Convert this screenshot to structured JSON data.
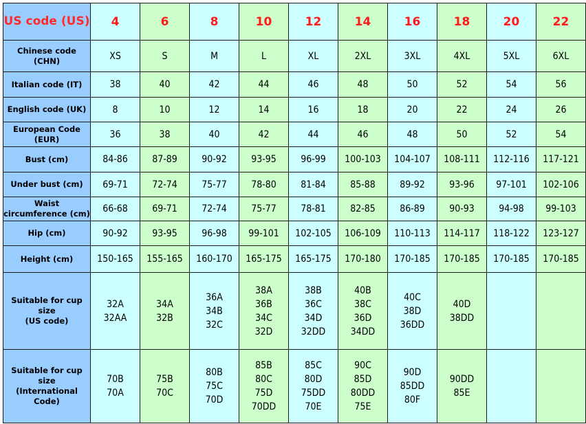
{
  "colors": {
    "label_bg": "#99ccff",
    "col_a": "#ccffff",
    "col_b": "#ccffcc",
    "header_text": "#ff1a1a"
  },
  "rows": [
    {
      "label": "US code (US)",
      "values": [
        "4",
        "6",
        "8",
        "10",
        "12",
        "14",
        "16",
        "18",
        "20",
        "22"
      ]
    },
    {
      "label": "Chinese code (CHN)",
      "values": [
        "XS",
        "S",
        "M",
        "L",
        "XL",
        "2XL",
        "3XL",
        "4XL",
        "5XL",
        "6XL"
      ]
    },
    {
      "label": "Italian code (IT)",
      "values": [
        "38",
        "40",
        "42",
        "44",
        "46",
        "48",
        "50",
        "52",
        "54",
        "56"
      ]
    },
    {
      "label": "English code (UK)",
      "values": [
        "8",
        "10",
        "12",
        "14",
        "16",
        "18",
        "20",
        "22",
        "24",
        "26"
      ]
    },
    {
      "label": "European Code (EUR)",
      "values": [
        "36",
        "38",
        "40",
        "42",
        "44",
        "46",
        "48",
        "50",
        "52",
        "54"
      ]
    },
    {
      "label": "Bust (cm)",
      "values": [
        "84-86",
        "87-89",
        "90-92",
        "93-95",
        "96-99",
        "100-103",
        "104-107",
        "108-111",
        "112-116",
        "117-121"
      ]
    },
    {
      "label": "Under bust (cm)",
      "values": [
        "69-71",
        "72-74",
        "75-77",
        "78-80",
        "81-84",
        "85-88",
        "89-92",
        "93-96",
        "97-101",
        "102-106"
      ]
    },
    {
      "label": [
        "Waist",
        "circumference (cm)"
      ],
      "values": [
        "66-68",
        "69-71",
        "72-74",
        "75-77",
        "78-81",
        "82-85",
        "86-89",
        "90-93",
        "94-98",
        "99-103"
      ]
    },
    {
      "label": "Hip (cm)",
      "values": [
        "90-92",
        "93-95",
        "96-98",
        "99-101",
        "102-105",
        "106-109",
        "110-113",
        "114-117",
        "118-122",
        "123-127"
      ]
    },
    {
      "label": "Height (cm)",
      "values": [
        "150-165",
        "155-165",
        "160-170",
        "165-175",
        "165-175",
        "170-180",
        "170-185",
        "170-185",
        "170-185",
        "170-185"
      ]
    },
    {
      "label": [
        "Suitable for cup size",
        "(US code)"
      ],
      "values": [
        [
          "32A",
          "32AA"
        ],
        [
          "34A",
          "32B"
        ],
        [
          "36A",
          "34B",
          "32C"
        ],
        [
          "38A",
          "36B",
          "34C",
          "32D"
        ],
        [
          "38B",
          "36C",
          "34D",
          "32DD"
        ],
        [
          "40B",
          "38C",
          "36D",
          "34DD"
        ],
        [
          "40C",
          "38D",
          "36DD"
        ],
        [
          "40D",
          "38DD"
        ],
        [],
        []
      ]
    },
    {
      "label": [
        "Suitable for cup size",
        "(International Code)"
      ],
      "values": [
        [
          "70B",
          "70A"
        ],
        [
          "75B",
          "70C"
        ],
        [
          "80B",
          "75C",
          "70D"
        ],
        [
          "85B",
          "80C",
          "75D",
          "70DD"
        ],
        [
          "85C",
          "80D",
          "75DD",
          "70E"
        ],
        [
          "90C",
          "85D",
          "80DD",
          "75E"
        ],
        [
          "90D",
          "85DD",
          "80F"
        ],
        [
          "90DD",
          "85E"
        ],
        [],
        []
      ]
    }
  ]
}
